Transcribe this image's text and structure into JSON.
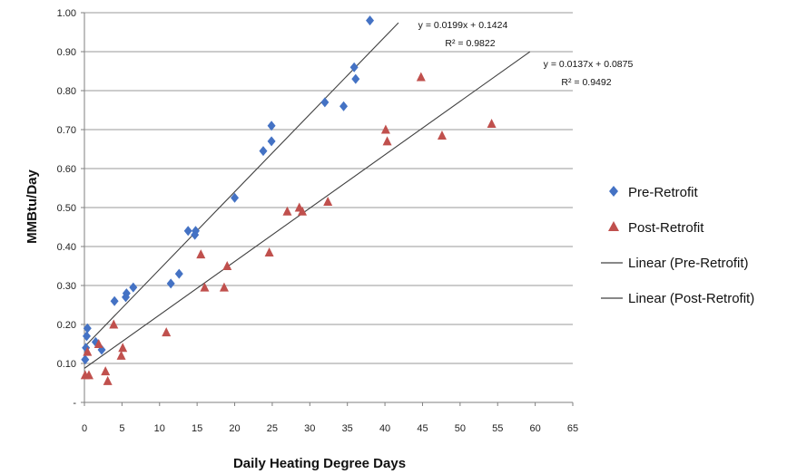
{
  "chart_data": {
    "type": "scatter",
    "xlabel": "Daily Heating Degree Days",
    "ylabel": "MMBtu/Day",
    "xlim": [
      0,
      65
    ],
    "ylim": [
      0,
      1.0
    ],
    "x_ticks": [
      "0",
      "5",
      "10",
      "15",
      "20",
      "25",
      "30",
      "35",
      "40",
      "45",
      "50",
      "55",
      "60",
      "65"
    ],
    "y_ticks": [
      "-",
      "0.10",
      "0.20",
      "0.30",
      "0.40",
      "0.50",
      "0.60",
      "0.70",
      "0.80",
      "0.90",
      "1.00"
    ],
    "grid": "horizontal",
    "legend_position": "right",
    "series": [
      {
        "name": "Pre-Retrofit",
        "marker": "diamond",
        "color": "#4472C4",
        "points": [
          [
            0.1,
            0.11
          ],
          [
            0.2,
            0.14
          ],
          [
            0.3,
            0.17
          ],
          [
            0.4,
            0.19
          ],
          [
            1.5,
            0.155
          ],
          [
            2.3,
            0.135
          ],
          [
            4.0,
            0.26
          ],
          [
            5.5,
            0.27
          ],
          [
            5.6,
            0.28
          ],
          [
            6.5,
            0.295
          ],
          [
            11.5,
            0.305
          ],
          [
            12.6,
            0.33
          ],
          [
            13.8,
            0.44
          ],
          [
            14.7,
            0.43
          ],
          [
            14.8,
            0.44
          ],
          [
            20.0,
            0.525
          ],
          [
            23.8,
            0.645
          ],
          [
            24.9,
            0.67
          ],
          [
            24.9,
            0.71
          ],
          [
            32.0,
            0.77
          ],
          [
            34.5,
            0.76
          ],
          [
            35.9,
            0.86
          ],
          [
            36.1,
            0.83
          ],
          [
            38.0,
            0.98
          ]
        ]
      },
      {
        "name": "Post-Retrofit",
        "marker": "triangle",
        "color": "#C0504D",
        "points": [
          [
            0.1,
            0.07
          ],
          [
            0.4,
            0.13
          ],
          [
            0.6,
            0.07
          ],
          [
            1.9,
            0.15
          ],
          [
            2.8,
            0.08
          ],
          [
            3.1,
            0.055
          ],
          [
            3.9,
            0.2
          ],
          [
            4.9,
            0.12
          ],
          [
            5.1,
            0.14
          ],
          [
            10.9,
            0.18
          ],
          [
            15.5,
            0.38
          ],
          [
            16.0,
            0.295
          ],
          [
            18.6,
            0.295
          ],
          [
            19.0,
            0.35
          ],
          [
            24.6,
            0.385
          ],
          [
            27.0,
            0.49
          ],
          [
            28.6,
            0.5
          ],
          [
            29.0,
            0.49
          ],
          [
            32.4,
            0.515
          ],
          [
            40.1,
            0.7
          ],
          [
            40.3,
            0.67
          ],
          [
            44.8,
            0.835
          ],
          [
            47.6,
            0.685
          ],
          [
            54.2,
            0.715
          ]
        ]
      }
    ],
    "trendlines": [
      {
        "name": "Linear (Pre-Retrofit)",
        "slope": 0.0199,
        "intercept": 0.1424,
        "equation": "y = 0.0199x + 0.1424",
        "r_squared": "R² = 0.9822",
        "x_range": [
          0,
          41.8
        ],
        "color": "#404040"
      },
      {
        "name": "Linear (Post-Retrofit)",
        "slope": 0.0137,
        "intercept": 0.0875,
        "equation": "y = 0.0137x + 0.0875",
        "r_squared": "R² = 0.9492",
        "x_range": [
          0,
          59.3
        ],
        "color": "#404040"
      }
    ]
  }
}
